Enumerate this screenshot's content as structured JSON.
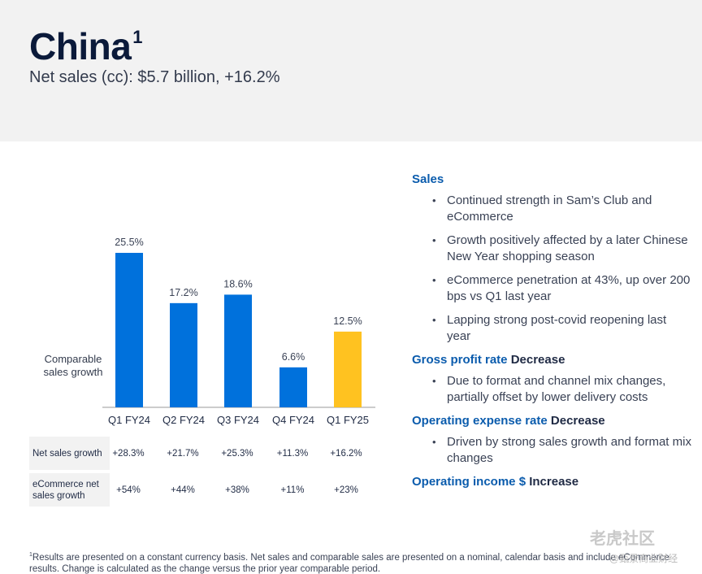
{
  "header": {
    "title": "China",
    "title_sup": "1",
    "subtitle": "Net sales (cc): $5.7 billion, +16.2%"
  },
  "chart_data": {
    "type": "bar",
    "categories": [
      "Q1 FY24",
      "Q2 FY24",
      "Q3 FY24",
      "Q4 FY24",
      "Q1 FY25"
    ],
    "values": [
      25.5,
      17.2,
      18.6,
      6.6,
      12.5
    ],
    "data_labels": [
      "25.5%",
      "17.2%",
      "18.6%",
      "6.6%",
      "12.5%"
    ],
    "ylabel": "Comparable sales growth",
    "ylim": [
      0,
      28
    ],
    "grid": false,
    "colors": [
      "#0071dc",
      "#0071dc",
      "#0071dc",
      "#0071dc",
      "#ffc220"
    ]
  },
  "metrics": [
    {
      "label": "Net sales growth",
      "values": [
        "+28.3%",
        "+21.7%",
        "+25.3%",
        "+11.3%",
        "+16.2%"
      ]
    },
    {
      "label": "eCommerce net sales growth",
      "values": [
        "+54%",
        "+44%",
        "+38%",
        "+11%",
        "+23%"
      ]
    }
  ],
  "sections": [
    {
      "title_blue": "Sales",
      "title_rest": "",
      "bullets": [
        "Continued strength in Sam’s Club and eCommerce",
        "Growth positively affected by a later Chinese New Year shopping season",
        "eCommerce penetration at 43%, up over 200 bps vs Q1 last year",
        "Lapping strong post-covid reopening last year"
      ]
    },
    {
      "title_blue": "Gross profit rate",
      "title_rest": " Decrease",
      "bullets": [
        "Due to format and channel mix changes, partially offset by lower delivery costs"
      ]
    },
    {
      "title_blue": "Operating expense rate",
      "title_rest": " Decrease",
      "bullets": [
        "Driven by strong sales growth and format mix changes"
      ]
    },
    {
      "title_blue": "Operating income $",
      "title_rest": " Increase",
      "bullets": []
    }
  ],
  "footnote": {
    "sup": "1",
    "text": "Results are presented on a constant currency basis. Net sales and comparable sales are presented on a nominal, calendar basis and include eCommerce results. Change is calculated as the change versus the prior year comparable period."
  },
  "watermark": {
    "main": "老虎社区",
    "sub": "@甄景商业财经"
  }
}
